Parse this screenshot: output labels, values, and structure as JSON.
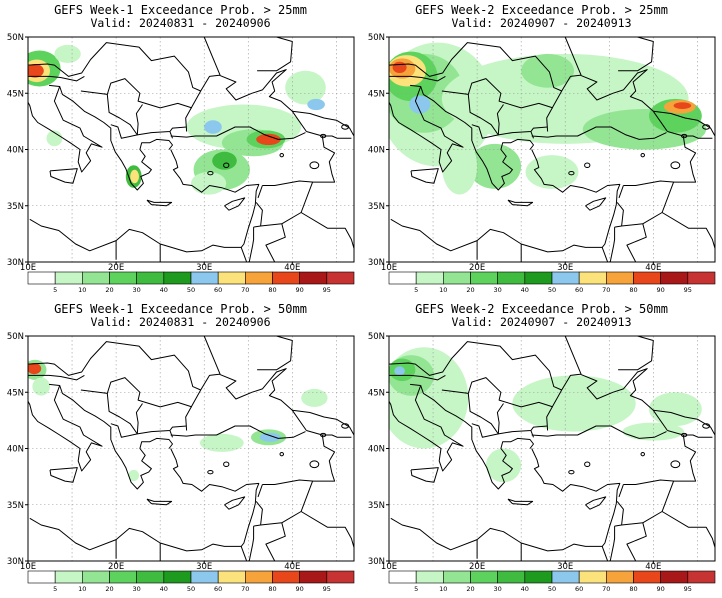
{
  "colors": {
    "c5": "#ffffff",
    "c10": "#c6f5c6",
    "c20": "#93e593",
    "c30": "#5dd35d",
    "c40": "#3fbb3f",
    "c50": "#1e9a1e",
    "c60": "#8cc8ee",
    "c70": "#fbe27a",
    "c80": "#f5a33a",
    "c90": "#e8461b",
    "c95": "#a81818",
    "c100": "#c73333",
    "sea": "#ffffff",
    "land_line": "#000000",
    "grid": "#9a9a9a"
  },
  "colorbar": {
    "labels": [
      "5",
      "10",
      "20",
      "30",
      "40",
      "50",
      "60",
      "70",
      "80",
      "90",
      "95"
    ],
    "bins": [
      "c5",
      "c10",
      "c20",
      "c30",
      "c40",
      "c50",
      "c60",
      "c70",
      "c80",
      "c90",
      "c95",
      "c100"
    ]
  },
  "axes": {
    "lat_labels": [
      "50N",
      "45N",
      "40N",
      "35N",
      "30N"
    ],
    "lon_labels": [
      "10E",
      "20E",
      "30E",
      "40E"
    ],
    "lon_range": [
      10,
      47
    ],
    "lat_range": [
      30,
      50
    ]
  },
  "panels": [
    {
      "title": "GEFS Week-1 Exceedance Prob. > 25mm",
      "valid": "Valid: 20240831 - 20240906",
      "blobs": [
        {
          "lon": 11.3,
          "lat": 47.2,
          "rx": 2.4,
          "ry": 1.6,
          "bin": "c30"
        },
        {
          "lon": 11.0,
          "lat": 47.0,
          "rx": 1.5,
          "ry": 1.0,
          "bin": "c70"
        },
        {
          "lon": 10.8,
          "lat": 47.0,
          "rx": 1.0,
          "ry": 0.6,
          "bin": "c90"
        },
        {
          "lon": 14.5,
          "lat": 48.5,
          "rx": 1.5,
          "ry": 0.8,
          "bin": "c10"
        },
        {
          "lon": 13.0,
          "lat": 41.0,
          "rx": 0.9,
          "ry": 0.7,
          "bin": "c10"
        },
        {
          "lon": 22.0,
          "lat": 37.6,
          "rx": 0.9,
          "ry": 1.0,
          "bin": "c40"
        },
        {
          "lon": 22.1,
          "lat": 37.6,
          "rx": 0.5,
          "ry": 0.6,
          "bin": "c70"
        },
        {
          "lon": 34.5,
          "lat": 42.0,
          "rx": 6.5,
          "ry": 2.0,
          "bin": "c10"
        },
        {
          "lon": 35.5,
          "lat": 40.6,
          "rx": 3.5,
          "ry": 1.2,
          "bin": "c20"
        },
        {
          "lon": 37.0,
          "lat": 40.9,
          "rx": 2.2,
          "ry": 0.8,
          "bin": "c30"
        },
        {
          "lon": 37.3,
          "lat": 40.9,
          "rx": 1.4,
          "ry": 0.5,
          "bin": "c90"
        },
        {
          "lon": 41.5,
          "lat": 45.5,
          "rx": 2.3,
          "ry": 1.5,
          "bin": "c10"
        },
        {
          "lon": 42.7,
          "lat": 44.0,
          "rx": 1.0,
          "ry": 0.5,
          "bin": "c60"
        },
        {
          "lon": 31.0,
          "lat": 42.0,
          "rx": 1.0,
          "ry": 0.6,
          "bin": "c60"
        },
        {
          "lon": 32.0,
          "lat": 38.2,
          "rx": 3.2,
          "ry": 1.8,
          "bin": "c20"
        },
        {
          "lon": 32.3,
          "lat": 39.0,
          "rx": 1.4,
          "ry": 0.8,
          "bin": "c40"
        },
        {
          "lon": 30.5,
          "lat": 37.0,
          "rx": 2.0,
          "ry": 1.0,
          "bin": "c10"
        }
      ]
    },
    {
      "title": "GEFS Week-2 Exceedance Prob. > 25mm",
      "valid": "Valid: 20240907 - 20240913",
      "blobs": [
        {
          "lon": 15.5,
          "lat": 44.0,
          "rx": 6.5,
          "ry": 5.5,
          "bin": "c10"
        },
        {
          "lon": 14.0,
          "lat": 45.0,
          "rx": 4.5,
          "ry": 3.5,
          "bin": "c20"
        },
        {
          "lon": 12.5,
          "lat": 46.5,
          "rx": 3.0,
          "ry": 2.2,
          "bin": "c30"
        },
        {
          "lon": 12.0,
          "lat": 47.0,
          "rx": 2.2,
          "ry": 1.4,
          "bin": "c70"
        },
        {
          "lon": 11.5,
          "lat": 47.2,
          "rx": 1.5,
          "ry": 0.9,
          "bin": "c80"
        },
        {
          "lon": 11.2,
          "lat": 47.3,
          "rx": 0.8,
          "ry": 0.5,
          "bin": "c90"
        },
        {
          "lon": 13.5,
          "lat": 44.0,
          "rx": 1.2,
          "ry": 0.8,
          "bin": "c60"
        },
        {
          "lon": 30.0,
          "lat": 44.5,
          "rx": 14.0,
          "ry": 4.0,
          "bin": "c10"
        },
        {
          "lon": 28.0,
          "lat": 47.0,
          "rx": 3.0,
          "ry": 1.5,
          "bin": "c20"
        },
        {
          "lon": 39.0,
          "lat": 41.8,
          "rx": 7.0,
          "ry": 1.8,
          "bin": "c20"
        },
        {
          "lon": 42.5,
          "lat": 43.0,
          "rx": 3.0,
          "ry": 1.5,
          "bin": "c30"
        },
        {
          "lon": 43.0,
          "lat": 43.8,
          "rx": 1.8,
          "ry": 0.6,
          "bin": "c80"
        },
        {
          "lon": 43.3,
          "lat": 43.9,
          "rx": 1.0,
          "ry": 0.3,
          "bin": "c90"
        },
        {
          "lon": 22.0,
          "lat": 38.5,
          "rx": 3.0,
          "ry": 2.0,
          "bin": "c20"
        },
        {
          "lon": 28.5,
          "lat": 38.0,
          "rx": 3.0,
          "ry": 1.5,
          "bin": "c10"
        },
        {
          "lon": 18.0,
          "lat": 38.5,
          "rx": 2.0,
          "ry": 2.5,
          "bin": "c10"
        }
      ]
    },
    {
      "title": "GEFS Week-1 Exceedance Prob. > 50mm",
      "valid": "Valid: 20240831 - 20240906",
      "blobs": [
        {
          "lon": 10.8,
          "lat": 47.0,
          "rx": 1.3,
          "ry": 0.9,
          "bin": "c20"
        },
        {
          "lon": 10.7,
          "lat": 47.1,
          "rx": 0.8,
          "ry": 0.5,
          "bin": "c90"
        },
        {
          "lon": 11.5,
          "lat": 45.5,
          "rx": 1.0,
          "ry": 0.8,
          "bin": "c10"
        },
        {
          "lon": 37.3,
          "lat": 41.0,
          "rx": 2.0,
          "ry": 0.7,
          "bin": "c20"
        },
        {
          "lon": 37.5,
          "lat": 41.0,
          "rx": 1.2,
          "ry": 0.4,
          "bin": "c60"
        },
        {
          "lon": 32.0,
          "lat": 40.5,
          "rx": 2.5,
          "ry": 0.8,
          "bin": "c10"
        },
        {
          "lon": 42.5,
          "lat": 44.5,
          "rx": 1.5,
          "ry": 0.8,
          "bin": "c10"
        },
        {
          "lon": 22.0,
          "lat": 37.6,
          "rx": 0.6,
          "ry": 0.5,
          "bin": "c10"
        }
      ]
    },
    {
      "title": "GEFS Week-2 Exceedance Prob. > 50mm",
      "valid": "Valid: 20240907 - 20240913",
      "blobs": [
        {
          "lon": 14.0,
          "lat": 44.5,
          "rx": 5.0,
          "ry": 4.5,
          "bin": "c10"
        },
        {
          "lon": 12.5,
          "lat": 46.5,
          "rx": 2.6,
          "ry": 1.8,
          "bin": "c20"
        },
        {
          "lon": 11.5,
          "lat": 47.0,
          "rx": 1.5,
          "ry": 1.0,
          "bin": "c30"
        },
        {
          "lon": 11.2,
          "lat": 46.9,
          "rx": 0.6,
          "ry": 0.4,
          "bin": "c60"
        },
        {
          "lon": 31.0,
          "lat": 44.0,
          "rx": 7.0,
          "ry": 2.5,
          "bin": "c10"
        },
        {
          "lon": 42.5,
          "lat": 43.5,
          "rx": 3.0,
          "ry": 1.5,
          "bin": "c10"
        },
        {
          "lon": 40.0,
          "lat": 41.5,
          "rx": 3.5,
          "ry": 0.8,
          "bin": "c10"
        },
        {
          "lon": 23.0,
          "lat": 38.5,
          "rx": 2.0,
          "ry": 1.5,
          "bin": "c10"
        }
      ]
    }
  ]
}
